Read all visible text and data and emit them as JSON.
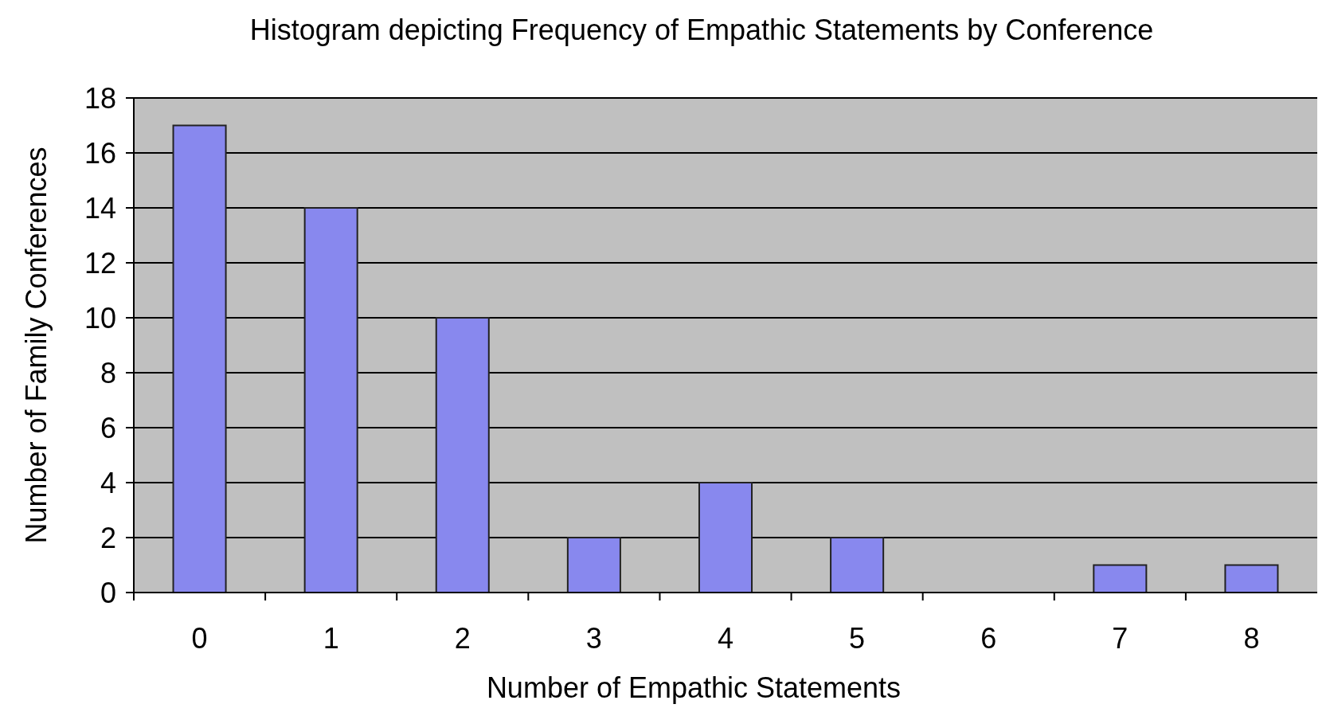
{
  "chart_data": {
    "type": "bar",
    "title": "Histogram depicting Frequency of Empathic Statements by Conference",
    "xlabel": "Number of Empathic Statements",
    "ylabel": "Number of Family Conferences",
    "categories": [
      "0",
      "1",
      "2",
      "3",
      "4",
      "5",
      "6",
      "7",
      "8"
    ],
    "values": [
      17,
      14,
      10,
      2,
      4,
      2,
      0,
      1,
      1
    ],
    "color": "#8888ee",
    "ylim": [
      0,
      18
    ],
    "yticks": [
      0,
      2,
      4,
      6,
      8,
      10,
      12,
      14,
      16,
      18
    ],
    "grid": "y"
  }
}
